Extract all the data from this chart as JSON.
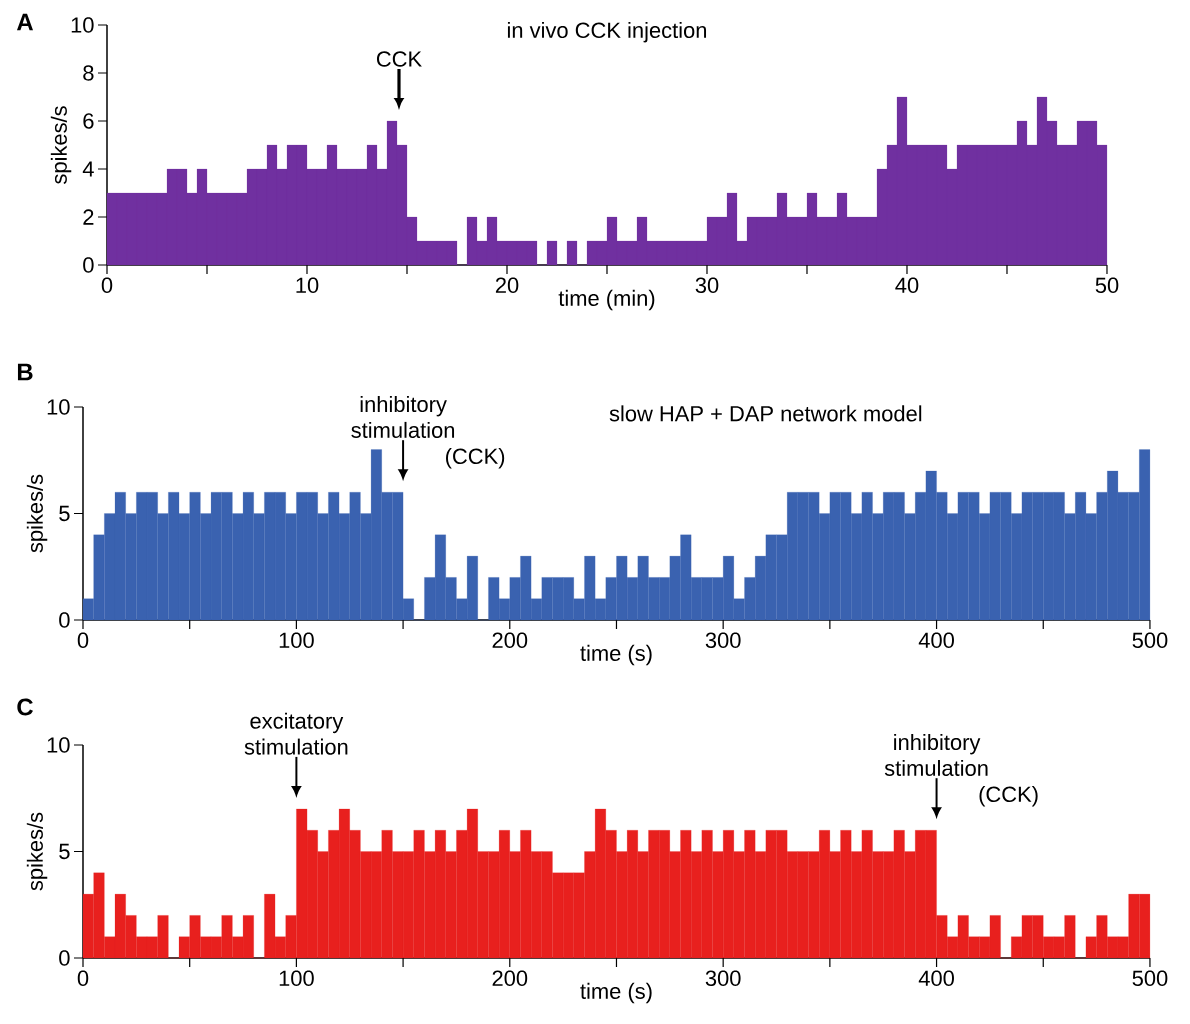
{
  "chart_data": [
    {
      "type": "histogram",
      "title": "in vivo CCK injection",
      "xlabel": "time (min)",
      "ylabel": "spikes/s",
      "color": "#7030a0",
      "bins": [
        0,
        0.5,
        1,
        1.5,
        2,
        2.5,
        3,
        3.5,
        4,
        4.5,
        5,
        5.5,
        6,
        6.5,
        7,
        7.5,
        8,
        8.5,
        9,
        9.5,
        10,
        10.5,
        11,
        11.5,
        12,
        12.5,
        13,
        13.5,
        14,
        14.5,
        15,
        15.5,
        16,
        16.5,
        17,
        17.5,
        18,
        18.5,
        19,
        19.5,
        20,
        20.5,
        21,
        21.5,
        22,
        22.5,
        23,
        23.5,
        24,
        24.5,
        25,
        25.5,
        26,
        26.5,
        27,
        27.5,
        28,
        28.5,
        29,
        29.5,
        30,
        30.5,
        31,
        31.5,
        32,
        32.5,
        33,
        33.5,
        34,
        34.5,
        35,
        35.5,
        36,
        36.5,
        37,
        37.5,
        38,
        38.5,
        39,
        39.5,
        40,
        40.5,
        41,
        41.5,
        42,
        42.5,
        43,
        43.5,
        44,
        44.5,
        45,
        45.5,
        46,
        46.5,
        47,
        47.5,
        48,
        48.5,
        49,
        49.5,
        50
      ],
      "values": [
        3,
        3,
        3,
        3,
        3,
        3,
        4,
        4,
        3,
        4,
        3,
        3,
        3,
        3,
        4,
        4,
        5,
        4,
        5,
        5,
        4,
        4,
        5,
        4,
        4,
        4,
        5,
        4,
        6,
        5,
        2,
        1,
        1,
        1,
        1,
        0,
        2,
        1,
        2,
        1,
        1,
        1,
        1,
        0,
        1,
        0,
        1,
        0,
        1,
        1,
        2,
        1,
        1,
        2,
        1,
        1,
        1,
        1,
        1,
        1,
        2,
        2,
        3,
        1,
        2,
        2,
        2,
        3,
        2,
        2,
        3,
        2,
        2,
        3,
        2,
        2,
        2,
        4,
        5,
        7,
        5,
        5,
        5,
        5,
        4,
        5,
        5,
        5,
        5,
        5,
        5,
        6,
        5,
        7,
        6,
        5,
        5,
        6,
        6,
        5
      ],
      "xlim": [
        0,
        50
      ],
      "ylim": [
        0,
        10
      ],
      "xticks": [
        0,
        {
          "value": 5,
          "label": null
        },
        10,
        {
          "value": 15,
          "label": null
        },
        20,
        {
          "value": 25,
          "label": null
        },
        30,
        {
          "value": 35,
          "label": null
        },
        40,
        {
          "value": 45,
          "label": null
        },
        50
      ],
      "yticks": [
        0,
        2,
        4,
        6,
        8,
        10
      ],
      "annotations": [
        "A",
        {
          "text": "CCK",
          "x": 14.6,
          "y": 6
        }
      ]
    },
    {
      "type": "histogram",
      "title": "slow HAP + DAP network model",
      "xlabel": "time (s)",
      "ylabel": "spikes/s",
      "color": "#3a62b0",
      "bins": [
        0,
        5,
        10,
        15,
        20,
        25,
        30,
        35,
        40,
        45,
        50,
        55,
        60,
        65,
        70,
        75,
        80,
        85,
        90,
        95,
        100,
        105,
        110,
        115,
        120,
        125,
        130,
        135,
        140,
        145,
        150,
        155,
        160,
        165,
        170,
        175,
        180,
        185,
        190,
        195,
        200,
        205,
        210,
        215,
        220,
        225,
        230,
        235,
        240,
        245,
        250,
        255,
        260,
        265,
        270,
        275,
        280,
        285,
        290,
        295,
        300,
        305,
        310,
        315,
        320,
        325,
        330,
        335,
        340,
        345,
        350,
        355,
        360,
        365,
        370,
        375,
        380,
        385,
        390,
        395,
        400,
        405,
        410,
        415,
        420,
        425,
        430,
        435,
        440,
        445,
        450,
        455,
        460,
        465,
        470,
        475,
        480,
        485,
        490,
        495,
        500
      ],
      "values": [
        1,
        4,
        5,
        6,
        5,
        6,
        6,
        5,
        6,
        5,
        6,
        5,
        6,
        6,
        5,
        6,
        5,
        6,
        6,
        5,
        6,
        6,
        5,
        6,
        5,
        6,
        5,
        8,
        6,
        6,
        1,
        0,
        2,
        4,
        2,
        1,
        3,
        0,
        2,
        1,
        2,
        3,
        1,
        2,
        2,
        2,
        1,
        3,
        1,
        2,
        3,
        2,
        3,
        2,
        2,
        3,
        4,
        2,
        2,
        2,
        3,
        1,
        2,
        3,
        4,
        4,
        6,
        6,
        6,
        5,
        6,
        6,
        5,
        6,
        5,
        6,
        6,
        5,
        6,
        7,
        6,
        5,
        6,
        6,
        5,
        6,
        6,
        5,
        6,
        6,
        6,
        6,
        5,
        6,
        5,
        6,
        7,
        6,
        6,
        8
      ],
      "xlim": [
        0,
        500
      ],
      "ylim": [
        0,
        10
      ],
      "xticks": [
        0,
        {
          "value": 50,
          "label": null
        },
        100,
        {
          "value": 150,
          "label": null
        },
        200,
        {
          "value": 250,
          "label": null
        },
        300,
        {
          "value": 350,
          "label": null
        },
        400,
        {
          "value": 450,
          "label": null
        },
        500
      ],
      "yticks": [
        0,
        5,
        10
      ],
      "annotations": [
        "B",
        {
          "text": "inhibitory stimulation",
          "x": 150,
          "y": 6
        },
        "(CCK)"
      ]
    },
    {
      "type": "histogram",
      "xlabel": "time (s)",
      "ylabel": "spikes/s",
      "color": "#e8201e",
      "bins": [
        0,
        5,
        10,
        15,
        20,
        25,
        30,
        35,
        40,
        45,
        50,
        55,
        60,
        65,
        70,
        75,
        80,
        85,
        90,
        95,
        100,
        105,
        110,
        115,
        120,
        125,
        130,
        135,
        140,
        145,
        150,
        155,
        160,
        165,
        170,
        175,
        180,
        185,
        190,
        195,
        200,
        205,
        210,
        215,
        220,
        225,
        230,
        235,
        240,
        245,
        250,
        255,
        260,
        265,
        270,
        275,
        280,
        285,
        290,
        295,
        300,
        305,
        310,
        315,
        320,
        325,
        330,
        335,
        340,
        345,
        350,
        355,
        360,
        365,
        370,
        375,
        380,
        385,
        390,
        395,
        400,
        405,
        410,
        415,
        420,
        425,
        430,
        435,
        440,
        445,
        450,
        455,
        460,
        465,
        470,
        475,
        480,
        485,
        490,
        495,
        500
      ],
      "values": [
        3,
        4,
        1,
        3,
        2,
        1,
        1,
        2,
        0,
        1,
        2,
        1,
        1,
        2,
        1,
        2,
        0,
        3,
        1,
        2,
        7,
        6,
        5,
        6,
        7,
        6,
        5,
        5,
        6,
        5,
        5,
        6,
        5,
        6,
        5,
        6,
        7,
        5,
        5,
        6,
        5,
        6,
        5,
        5,
        4,
        4,
        4,
        5,
        7,
        6,
        5,
        6,
        5,
        6,
        6,
        5,
        6,
        5,
        6,
        5,
        6,
        5,
        6,
        5,
        6,
        6,
        5,
        5,
        5,
        6,
        5,
        6,
        5,
        6,
        5,
        5,
        6,
        5,
        6,
        6,
        2,
        1,
        2,
        1,
        1,
        2,
        0,
        1,
        2,
        2,
        1,
        1,
        2,
        0,
        1,
        2,
        1,
        1,
        3,
        3
      ],
      "xlim": [
        0,
        500
      ],
      "ylim": [
        0,
        10
      ],
      "xticks": [
        0,
        {
          "value": 50,
          "label": null
        },
        100,
        {
          "value": 150,
          "label": null
        },
        200,
        {
          "value": 250,
          "label": null
        },
        300,
        {
          "value": 350,
          "label": null
        },
        400,
        {
          "value": 450,
          "label": null
        },
        500
      ],
      "yticks": [
        0,
        5,
        10
      ],
      "annotations": [
        "C",
        {
          "text": "excitatory stimulation",
          "x": 100,
          "y": 7
        },
        {
          "text": "inhibitory stimulation",
          "x": 400,
          "y": 6
        },
        "(CCK)"
      ]
    }
  ]
}
